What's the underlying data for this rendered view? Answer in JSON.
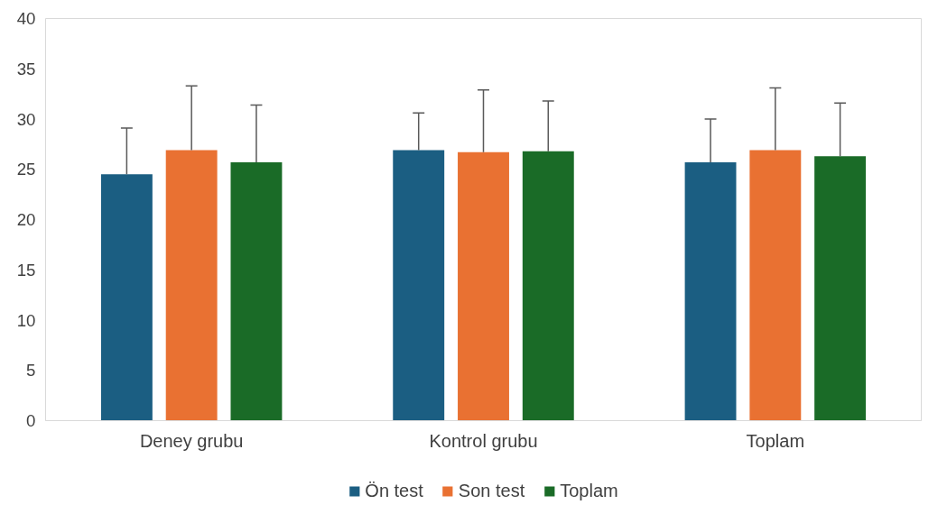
{
  "chart_data": {
    "type": "bar",
    "categories": [
      "Deney grubu",
      "Kontrol grubu",
      "Toplam"
    ],
    "series": [
      {
        "name": "Ön test",
        "color": "#1b5e82",
        "values": [
          24.5,
          26.9,
          25.7
        ],
        "errors": [
          [
            24.5,
            29.1
          ],
          [
            26.9,
            30.6
          ],
          [
            25.7,
            30.0
          ]
        ]
      },
      {
        "name": "Son test",
        "color": "#e97132",
        "values": [
          26.9,
          26.7,
          26.9
        ],
        "errors": [
          [
            26.9,
            33.3
          ],
          [
            26.7,
            32.9
          ],
          [
            26.9,
            33.1
          ]
        ]
      },
      {
        "name": "Toplam",
        "color": "#1a6b27",
        "values": [
          25.7,
          26.8,
          26.3
        ],
        "errors": [
          [
            25.7,
            31.4
          ],
          [
            26.8,
            31.8
          ],
          [
            26.3,
            31.6
          ]
        ]
      }
    ],
    "ylim": [
      0,
      40
    ],
    "yticks": [
      0,
      5,
      10,
      15,
      20,
      25,
      30,
      35,
      40
    ],
    "grid": false,
    "legend": "bottom"
  }
}
